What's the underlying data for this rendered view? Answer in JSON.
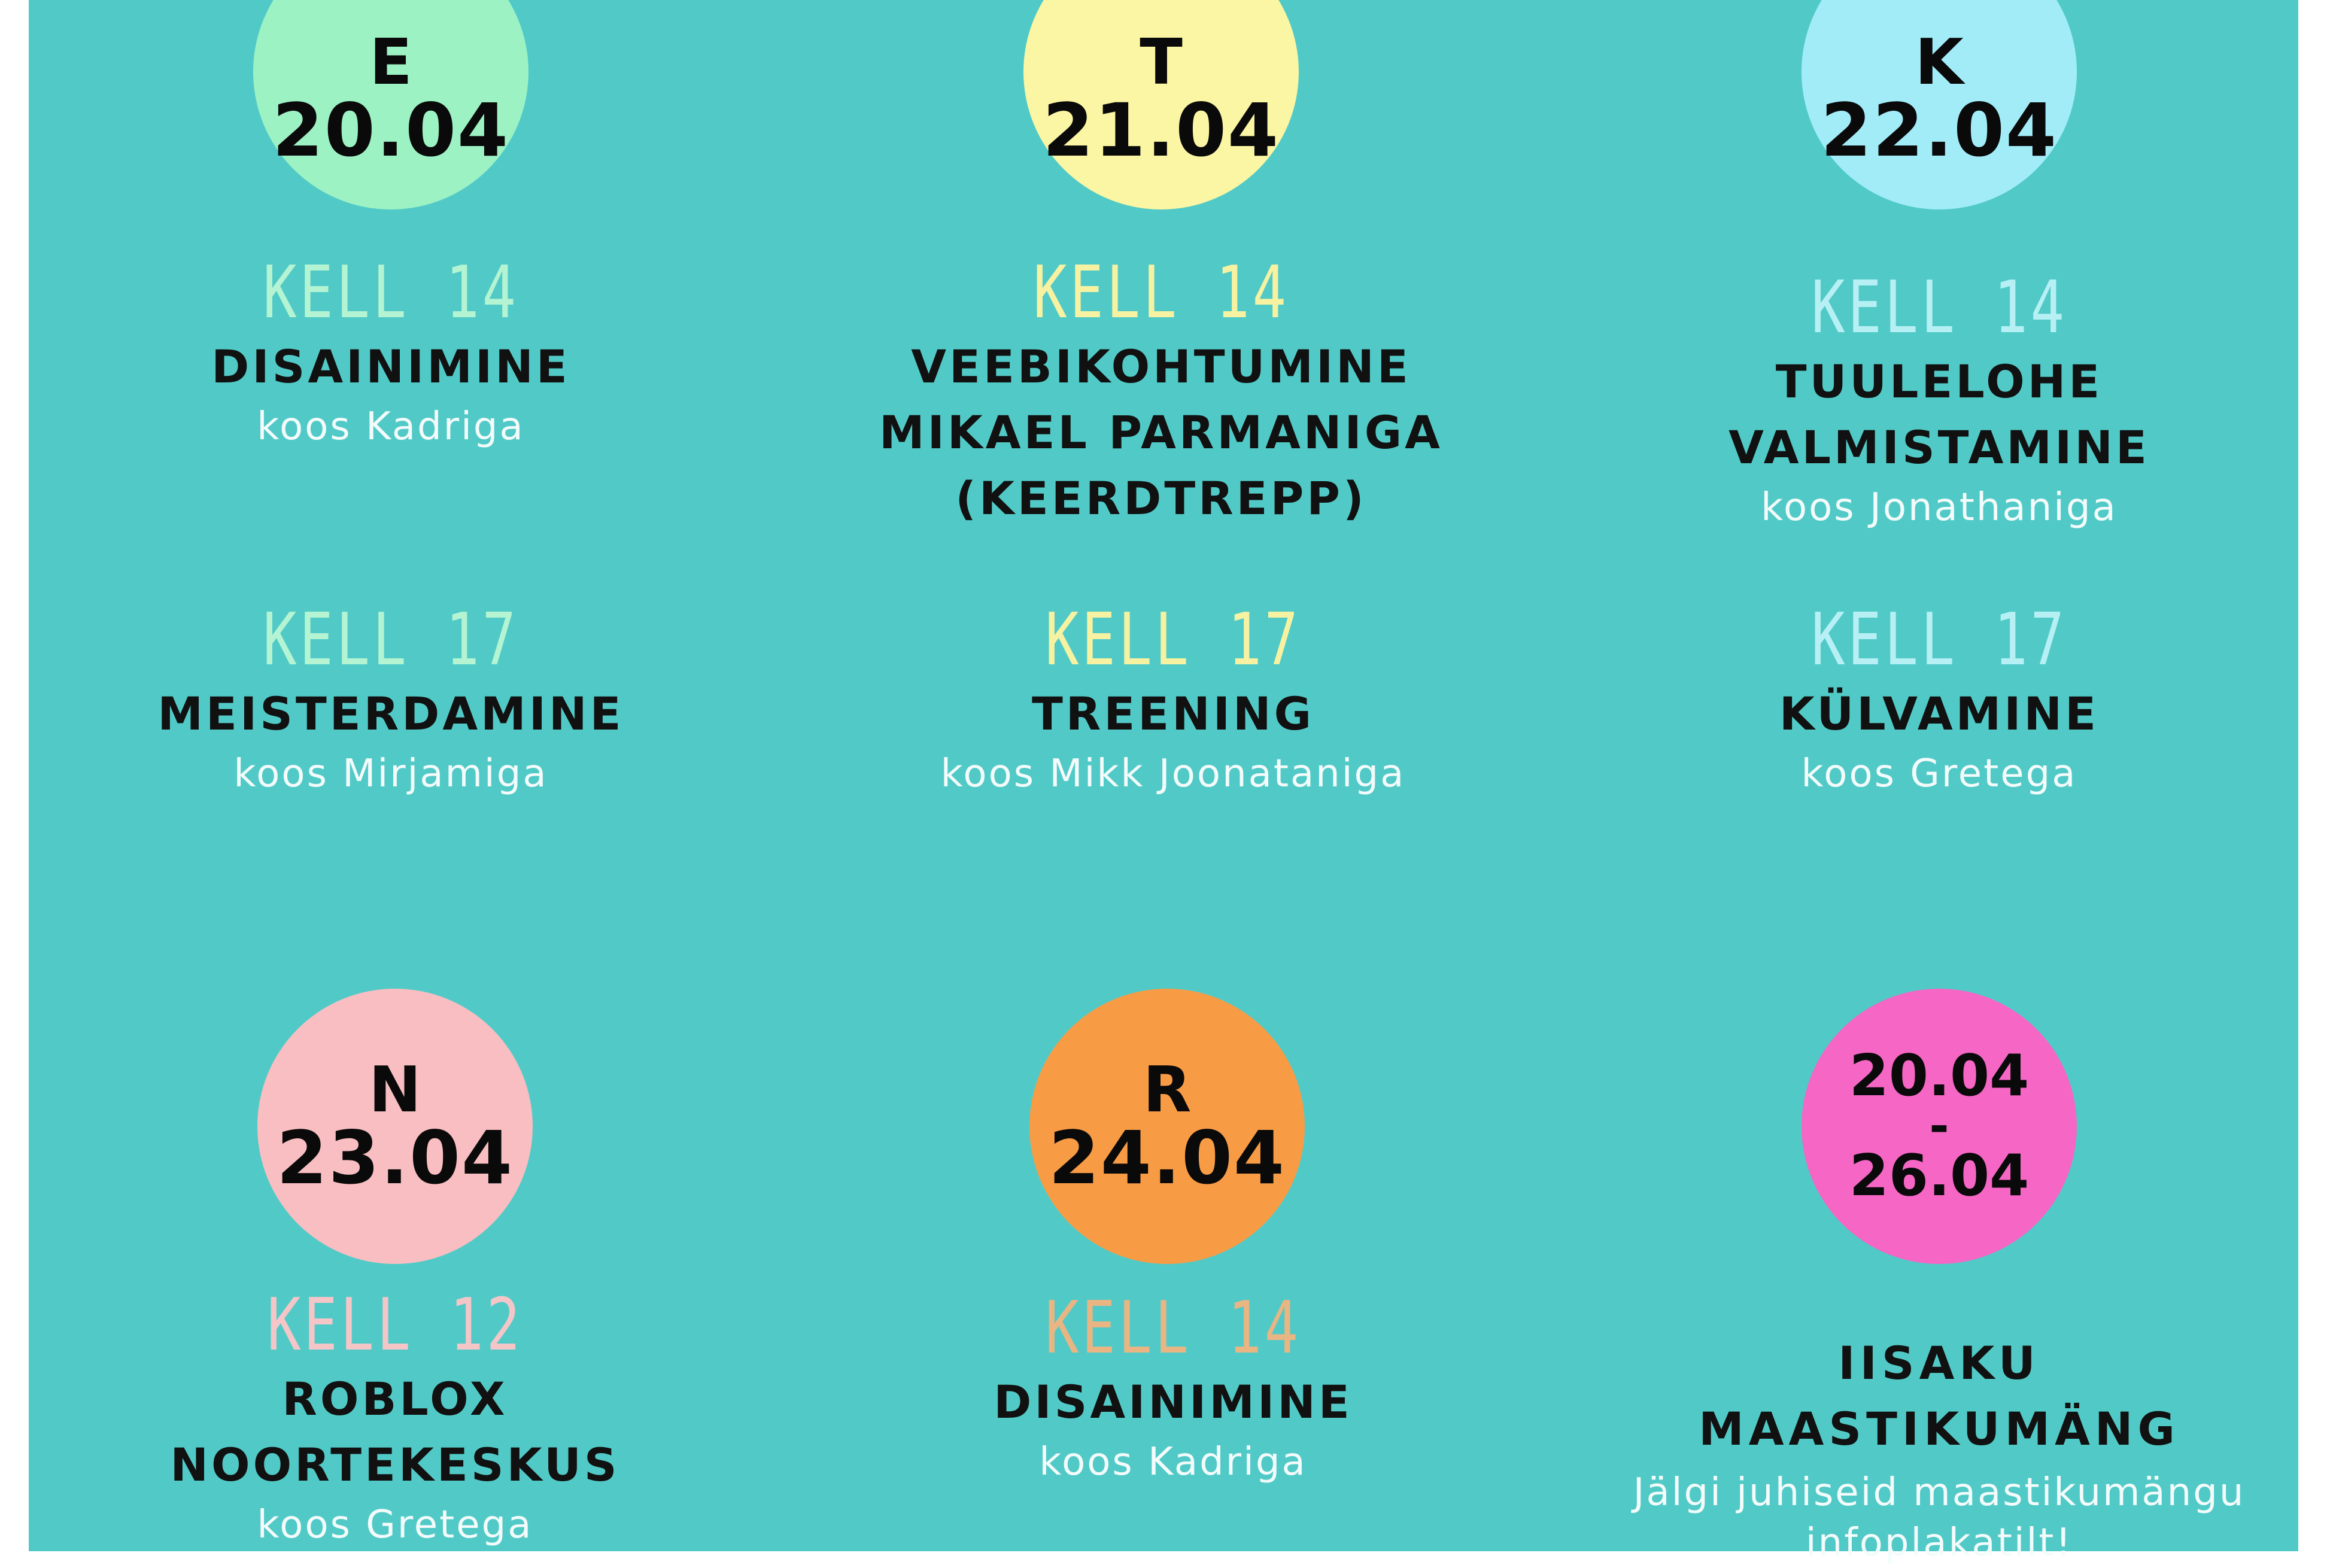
{
  "days": [
    {
      "id": "e",
      "weekday": "E",
      "date": "20.04",
      "circle_color": "#9df2c4",
      "kell_color": "#b4f4d3",
      "slots": [
        {
          "time": "KELL 14",
          "activity_lines": [
            "DISAINIMINE"
          ],
          "host": "koos Kadriga"
        },
        {
          "time": "KELL 17",
          "activity_lines": [
            "MEISTERDAMINE"
          ],
          "host": "koos Mirjamiga"
        }
      ]
    },
    {
      "id": "t",
      "weekday": "T",
      "date": "21.04",
      "circle_color": "#fbf6a4",
      "kell_color": "#f6f2a2",
      "slots": [
        {
          "time": "KELL 14",
          "activity_lines": [
            "VEEBIKOHTUMINE",
            "MIKAEL PARMANIGA",
            "(KEERDTREPP)"
          ],
          "host": ""
        },
        {
          "time": "KELL 17",
          "activity_lines": [
            "TREENING"
          ],
          "host": "koos Mikk Joonataniga"
        }
      ]
    },
    {
      "id": "k",
      "weekday": "K",
      "date": "22.04",
      "circle_color": "#a2ecf8",
      "kell_color": "#b7f0f4",
      "slots": [
        {
          "time": "KELL 14",
          "activity_lines": [
            "TUULELOHE",
            "VALMISTAMINE"
          ],
          "host": "koos Jonathaniga"
        },
        {
          "time": "KELL 17",
          "activity_lines": [
            "KÜLVAMINE"
          ],
          "host": "koos Gretega"
        }
      ]
    },
    {
      "id": "n",
      "weekday": "N",
      "date": "23.04",
      "circle_color": "#f9bec1",
      "kell_color": "#f4c6c8",
      "slots": [
        {
          "time": "KELL 12",
          "activity_lines": [
            "ROBLOX NOORTEKESKUS"
          ],
          "host": "koos Gretega"
        }
      ]
    },
    {
      "id": "r",
      "weekday": "R",
      "date": "24.04",
      "circle_color": "#f89b45",
      "kell_color": "#e8b583",
      "slots": [
        {
          "time": "KELL 14",
          "activity_lines": [
            "DISAINIMINE"
          ],
          "host": "koos Kadriga"
        }
      ]
    }
  ],
  "range_event": {
    "start": "20.04",
    "dash": "-",
    "end": "26.04",
    "circle_color": "#f566c5",
    "title_lines": [
      "IISAKU",
      "MAASTIKUMÄNG"
    ],
    "note_lines": [
      "Jälgi juhiseid maastikumängu",
      "infoplakatilt!"
    ]
  }
}
